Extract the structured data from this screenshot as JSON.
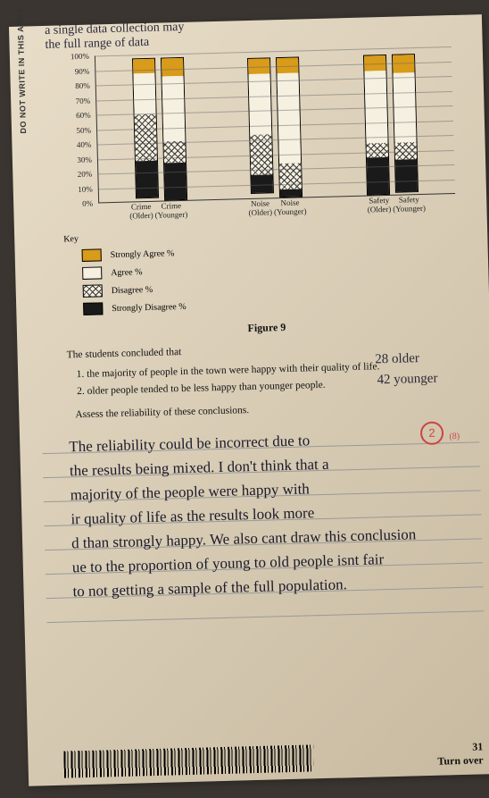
{
  "side_label": "DO NOT WRITE IN THIS AREA",
  "chart": {
    "type": "stacked-bar",
    "ylim": [
      0,
      100
    ],
    "ytick_step": 10,
    "ytick_suffix": "%",
    "background_color": "#e8ddc8",
    "grid_color": "#666666",
    "bar_border": "#000000",
    "categories": [
      {
        "group": "Crime",
        "sub": "(Older)"
      },
      {
        "group": "Crime",
        "sub": "(Younger)"
      },
      {
        "group": "Noise",
        "sub": "(Older)"
      },
      {
        "group": "Noise",
        "sub": "(Younger)"
      },
      {
        "group": "Safety",
        "sub": "(Older)"
      },
      {
        "group": "Safety",
        "sub": "(Younger)"
      }
    ],
    "series": [
      {
        "name": "Strongly Agree %",
        "key": "sa",
        "color": "#d89b1a"
      },
      {
        "name": "Agree %",
        "key": "a",
        "color": "#f5f0e0"
      },
      {
        "name": "Disagree %",
        "key": "d",
        "pattern": "crosshatch",
        "color": "#f5f0e0"
      },
      {
        "name": "Strongly Disagree %",
        "key": "sd",
        "color": "#1a1a1a"
      }
    ],
    "data": [
      {
        "sa": 10,
        "a": 28,
        "d": 32,
        "sd": 25
      },
      {
        "sa": 12,
        "a": 45,
        "d": 15,
        "sd": 25
      },
      {
        "sa": 10,
        "a": 42,
        "d": 28,
        "sd": 12
      },
      {
        "sa": 10,
        "a": 62,
        "d": 18,
        "sd": 5
      },
      {
        "sa": 10,
        "a": 50,
        "d": 10,
        "sd": 25
      },
      {
        "sa": 12,
        "a": 48,
        "d": 12,
        "sd": 22
      }
    ]
  },
  "key_title": "Key",
  "handwritten_notes": {
    "older": "28 older",
    "younger": "42 younger"
  },
  "figure_label": "Figure 9",
  "conclusion": {
    "intro": "The students concluded that",
    "items": [
      "the majority of people in the town were happy with their quality of life.",
      "older people tended to be less happy than younger people."
    ],
    "assess": "Assess the reliability of these conclusions."
  },
  "mark": {
    "score": "2",
    "sub": "(8)"
  },
  "student_answer": [
    "The reliability could be incorrect due to",
    "the results being mixed. I don't think that a",
    "majority of the people were happy with",
    "ir quality of life as the results look more",
    "d than strongly happy. We also cant draw this conclusion",
    "ue to the proportion of young to old people isnt fair",
    "to not getting a sample of the full population."
  ],
  "top_scrap": [
    "a single data collection may",
    "the full range of data"
  ],
  "footer": {
    "page": "31",
    "turn": "Turn over"
  }
}
